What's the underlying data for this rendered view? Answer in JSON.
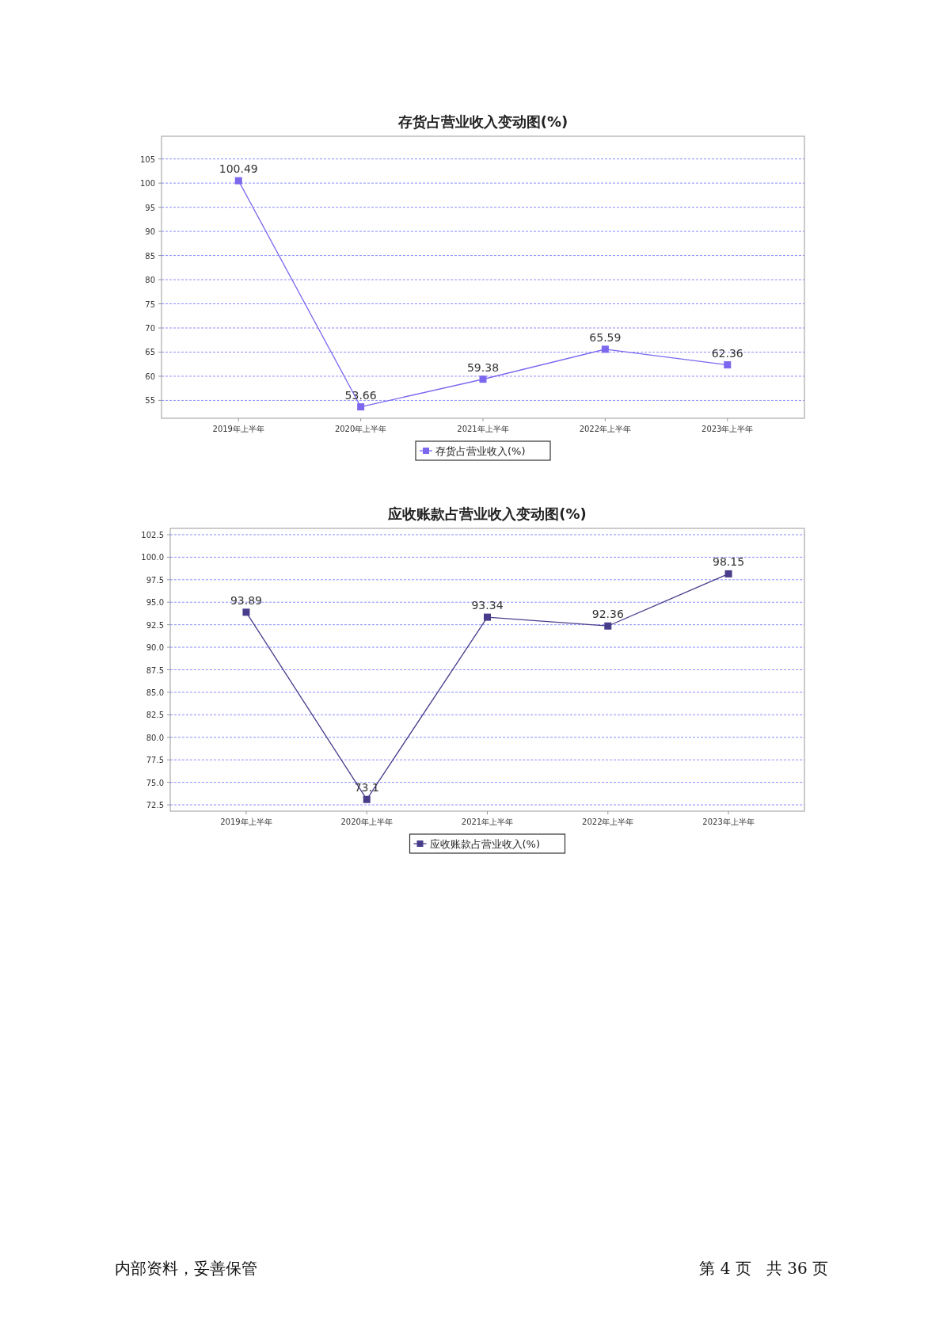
{
  "chart_data": [
    {
      "type": "line",
      "title": "存货占营业收入变动图(%)",
      "categories": [
        "2019年上半年",
        "2020年上半年",
        "2021年上半年",
        "2022年上半年",
        "2023年上半年"
      ],
      "series": [
        {
          "name": "存货占营业收入(%)",
          "color": "#7b68ee",
          "values": [
            100.49,
            53.66,
            59.38,
            65.59,
            62.36
          ]
        }
      ],
      "ylim": [
        51.3,
        109.7
      ],
      "yticks": [
        55,
        60,
        65,
        70,
        75,
        80,
        85,
        90,
        95,
        100,
        105
      ],
      "grid": "y",
      "legend": "bottom",
      "marker": "square",
      "line_style": "solid",
      "data_labels": true
    },
    {
      "type": "line",
      "title": "应收账款占营业收入变动图(%)",
      "categories": [
        "2019年上半年",
        "2020年上半年",
        "2021年上半年",
        "2022年上半年",
        "2023年上半年"
      ],
      "series": [
        {
          "name": "应收账款占营业收入(%)",
          "color": "#483d8b",
          "values": [
            93.89,
            73.1,
            93.34,
            92.36,
            98.15
          ]
        }
      ],
      "ylim": [
        71.8,
        103.2
      ],
      "yticks": [
        {
          "value": 72.5,
          "label": "72.5"
        },
        {
          "value": 75,
          "label": "75.0"
        },
        {
          "value": 77.5,
          "label": "77.5"
        },
        {
          "value": 80,
          "label": "80.0"
        },
        {
          "value": 82.5,
          "label": "82.5"
        },
        {
          "value": 85,
          "label": "85.0"
        },
        {
          "value": 87.5,
          "label": "87.5"
        },
        {
          "value": 90,
          "label": "90.0"
        },
        {
          "value": 92.5,
          "label": "92.5"
        },
        {
          "value": 95,
          "label": "95.0"
        },
        {
          "value": 97.5,
          "label": "97.5"
        },
        {
          "value": 100,
          "label": "100.0"
        },
        {
          "value": 102.5,
          "label": "102.5"
        }
      ],
      "grid": "y",
      "legend": "bottom",
      "marker": "square",
      "line_style": "solid",
      "data_labels": true,
      "annotations": [
        "内部资料，妥善保管",
        "第 4 页   共 36 页"
      ]
    }
  ]
}
